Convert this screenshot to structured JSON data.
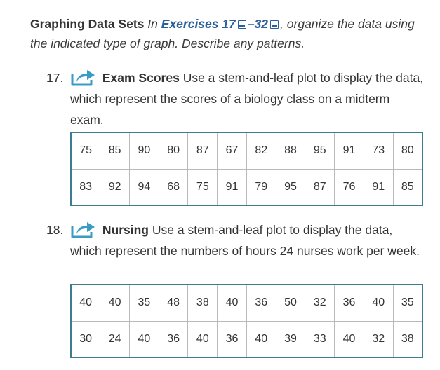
{
  "intro": {
    "heading": "Graphing Data Sets",
    "text_in": "In",
    "exercises_label": "Exercises 17",
    "dash": "–",
    "exercises_end": "32",
    "text_rest": ", organize the data using the indicated type of graph. Describe any patterns."
  },
  "exercises": [
    {
      "number": "17.",
      "title": "Exam Scores",
      "description": "Use a stem-and-leaf plot to display the data, which represent the scores of a biology class on a midterm exam.",
      "rows": [
        [
          "75",
          "85",
          "90",
          "80",
          "87",
          "67",
          "82",
          "88",
          "95",
          "91",
          "73",
          "80"
        ],
        [
          "83",
          "92",
          "94",
          "68",
          "75",
          "91",
          "79",
          "95",
          "87",
          "76",
          "91",
          "85"
        ]
      ]
    },
    {
      "number": "18.",
      "title": "Nursing",
      "description": "Use a stem-and-leaf plot to display the data, which represent the numbers of hours 24 nurses work per week.",
      "rows": [
        [
          "40",
          "40",
          "35",
          "48",
          "38",
          "40",
          "36",
          "50",
          "32",
          "36",
          "40",
          "35"
        ],
        [
          "30",
          "24",
          "40",
          "36",
          "40",
          "36",
          "40",
          "39",
          "33",
          "40",
          "32",
          "38"
        ]
      ]
    }
  ],
  "colors": {
    "link": "#2a6099",
    "icon": "#3a9bc4",
    "table_border": "#3c7d8f"
  },
  "icons": [
    "share-arrow-icon",
    "external-link-icon"
  ]
}
